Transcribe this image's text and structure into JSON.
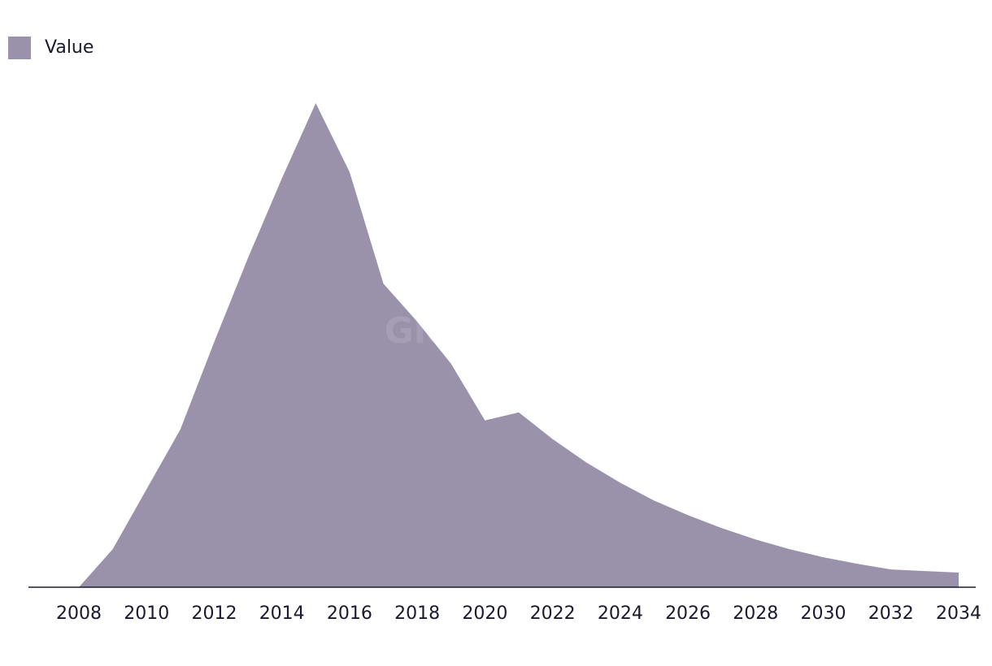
{
  "chart_data": {
    "type": "area",
    "watermark": "GlobalData",
    "x": [
      2008,
      2009,
      2010,
      2011,
      2012,
      2013,
      2014,
      2015,
      2016,
      2017,
      2018,
      2019,
      2020,
      2021,
      2022,
      2023,
      2024,
      2025,
      2026,
      2027,
      2028,
      2029,
      2030,
      2031,
      2032,
      2033,
      2034
    ],
    "series": [
      {
        "name": "Value",
        "color": "#9a91aa",
        "values": [
          0,
          47,
          121,
          195,
          303,
          407,
          505,
          598,
          513,
          375,
          328,
          276,
          206,
          216,
          183,
          154,
          129,
          107,
          89,
          73,
          59,
          47,
          37,
          29,
          22,
          20,
          18
        ]
      }
    ],
    "xlim": [
      2008,
      2034
    ],
    "xticks": [
      2008,
      2010,
      2012,
      2014,
      2016,
      2018,
      2020,
      2022,
      2024,
      2026,
      2028,
      2030,
      2032,
      2034
    ],
    "ylim": [
      0,
      600
    ],
    "legend": "top-left"
  }
}
